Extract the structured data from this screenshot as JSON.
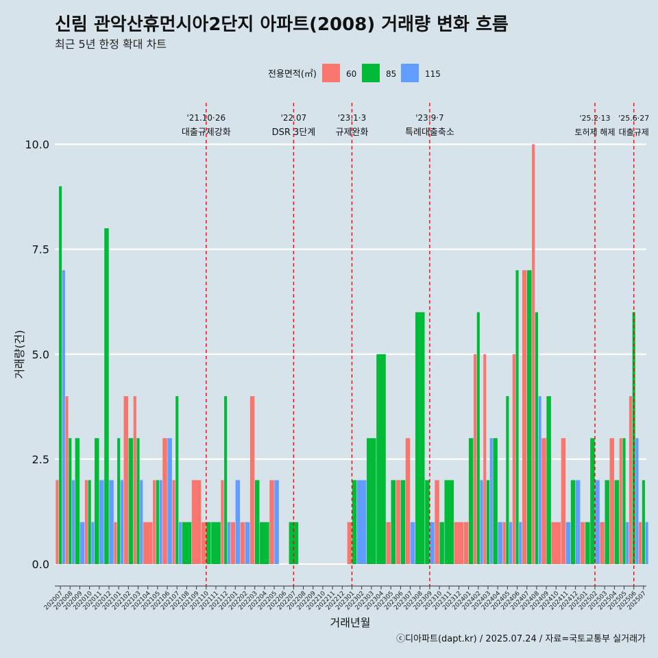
{
  "chart_data": {
    "type": "bar",
    "title": "신림 관악산휴먼시아2단지 아파트(2008) 거래량 변화 흐름",
    "subtitle": "최근 5년 한정 확대 차트",
    "xlabel": "거래년월",
    "ylabel": "거래량(건)",
    "ylim": [
      0,
      10
    ],
    "yticks": [
      "0.0",
      "2.5",
      "5.0",
      "7.5",
      "10.0"
    ],
    "legend": {
      "title": "전용면적(㎡)",
      "position": "top"
    },
    "categories": [
      "202007",
      "202008",
      "202009",
      "202010",
      "202011",
      "202012",
      "202101",
      "202102",
      "202103",
      "202104",
      "202105",
      "202106",
      "202107",
      "202108",
      "202109",
      "202110",
      "202111",
      "202112",
      "202201",
      "202202",
      "202203",
      "202204",
      "202205",
      "202206",
      "202207",
      "202208",
      "202209",
      "202210",
      "202211",
      "202212",
      "202301",
      "202302",
      "202303",
      "202304",
      "202305",
      "202306",
      "202307",
      "202308",
      "202309",
      "202310",
      "202311",
      "202312",
      "202401",
      "202402",
      "202403",
      "202404",
      "202405",
      "202406",
      "202407",
      "202408",
      "202409",
      "202410",
      "202411",
      "202412",
      "202501",
      "202502",
      "202503",
      "202504",
      "202505",
      "202506",
      "202507"
    ],
    "series": [
      {
        "name": "60",
        "color": "#f8766d",
        "values": [
          2,
          4,
          0,
          2,
          0,
          0,
          1,
          4,
          4,
          1,
          2,
          3,
          2,
          0,
          2,
          1,
          0,
          2,
          1,
          1,
          4,
          0,
          2,
          0,
          0,
          0,
          0,
          0,
          0,
          0,
          1,
          0,
          0,
          0,
          1,
          2,
          3,
          0,
          0,
          2,
          0,
          1,
          1,
          5,
          5,
          0,
          1,
          5,
          7,
          10,
          3,
          1,
          3,
          0,
          1,
          0,
          1,
          3,
          3,
          4,
          1
        ]
      },
      {
        "name": "85",
        "color": "#00ba38",
        "values": [
          9,
          3,
          3,
          2,
          3,
          8,
          3,
          3,
          3,
          0,
          2,
          0,
          4,
          1,
          0,
          1,
          1,
          4,
          0,
          0,
          2,
          1,
          0,
          0,
          1,
          0,
          0,
          0,
          0,
          0,
          2,
          0,
          3,
          5,
          2,
          2,
          0,
          6,
          2,
          1,
          2,
          0,
          3,
          6,
          2,
          3,
          4,
          7,
          7,
          6,
          4,
          0,
          0,
          2,
          1,
          3,
          2,
          2,
          3,
          6,
          2
        ]
      },
      {
        "name": "115",
        "color": "#619cff",
        "values": [
          7,
          2,
          1,
          1,
          2,
          2,
          2,
          0,
          2,
          0,
          2,
          3,
          1,
          0,
          0,
          0,
          0,
          1,
          2,
          1,
          0,
          0,
          2,
          0,
          0,
          0,
          0,
          0,
          0,
          0,
          0,
          2,
          0,
          0,
          0,
          0,
          1,
          0,
          1,
          0,
          0,
          0,
          0,
          2,
          3,
          1,
          1,
          1,
          0,
          4,
          0,
          0,
          1,
          2,
          0,
          2,
          0,
          0,
          1,
          3,
          1
        ]
      }
    ],
    "events": [
      {
        "category": "202110",
        "date": "'21.10·26",
        "label": "대출규제강화"
      },
      {
        "category": "202207",
        "date": "'22.07",
        "label": "DSR 3단계"
      },
      {
        "category": "202301",
        "date": "'23.1·3",
        "label": "규제완화"
      },
      {
        "category": "202309",
        "date": "'23.9·7",
        "label": "특례대출축소"
      },
      {
        "category": "202502",
        "date": "'25.2·13",
        "label": "토허제 해제"
      },
      {
        "category": "202506",
        "date": "'25.6·27",
        "label": "대출규제"
      }
    ]
  },
  "footer": {
    "caption": "ⓒ디아파트(dapt.kr) / 2025.07.24 / 자료=국토교통부 실거래가"
  }
}
